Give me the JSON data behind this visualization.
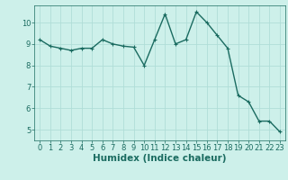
{
  "x": [
    0,
    1,
    2,
    3,
    4,
    5,
    6,
    7,
    8,
    9,
    10,
    11,
    12,
    13,
    14,
    15,
    16,
    17,
    18,
    19,
    20,
    21,
    22,
    23
  ],
  "y": [
    9.2,
    8.9,
    8.8,
    8.7,
    8.8,
    8.8,
    9.2,
    9.0,
    8.9,
    8.85,
    8.0,
    9.2,
    10.4,
    9.0,
    9.2,
    10.5,
    10.0,
    9.4,
    8.8,
    6.6,
    6.3,
    5.4,
    5.4,
    4.9
  ],
  "bg_color": "#cdf0ea",
  "grid_color": "#b0ddd7",
  "line_color": "#1a6b60",
  "marker_color": "#1a6b60",
  "xlabel": "Humidex (Indice chaleur)",
  "ylim": [
    4.5,
    10.8
  ],
  "xlim": [
    -0.5,
    23.5
  ],
  "yticks": [
    5,
    6,
    7,
    8,
    9,
    10
  ],
  "xticks": [
    0,
    1,
    2,
    3,
    4,
    5,
    6,
    7,
    8,
    9,
    10,
    11,
    12,
    13,
    14,
    15,
    16,
    17,
    18,
    19,
    20,
    21,
    22,
    23
  ],
  "xlabel_fontsize": 7.5,
  "tick_fontsize": 6.0,
  "line_width": 1.0,
  "marker_size": 2.5
}
